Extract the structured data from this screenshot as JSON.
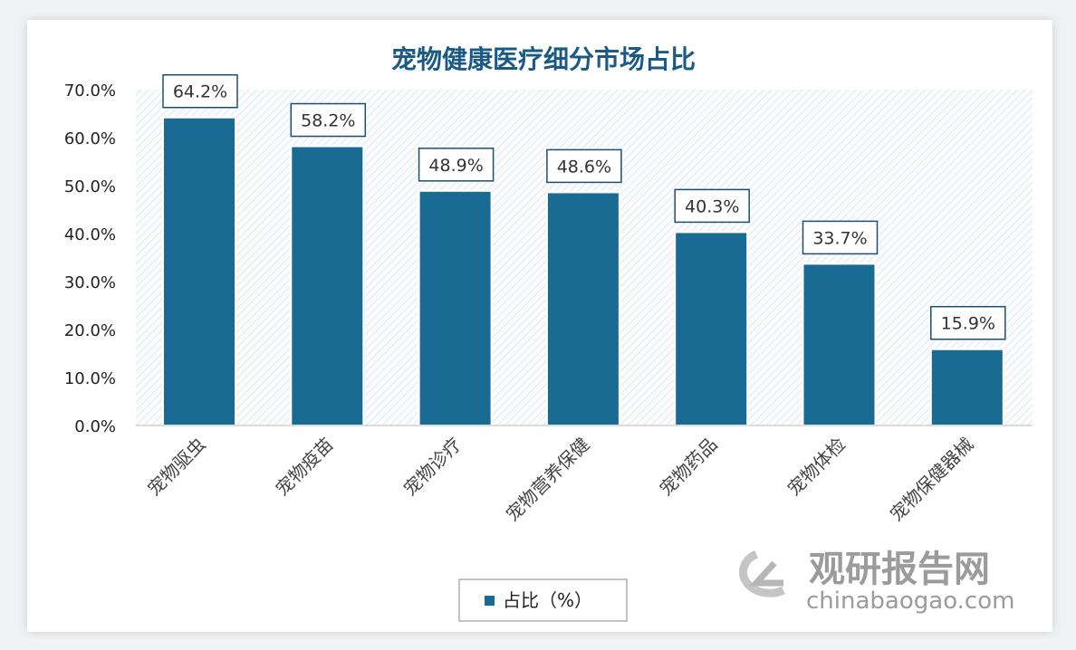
{
  "chart_data": {
    "type": "bar",
    "title": "宠物健康医疗细分市场占比",
    "categories": [
      "宠物驱虫",
      "宠物疫苗",
      "宠物诊疗",
      "宠物营养保健",
      "宠物药品",
      "宠物体检",
      "宠物保健器械"
    ],
    "series": [
      {
        "name": "占比（%）",
        "values": [
          64.2,
          58.2,
          48.9,
          48.6,
          40.3,
          33.7,
          15.9
        ],
        "color": "#196b93"
      }
    ],
    "data_labels": [
      "64.2%",
      "58.2%",
      "48.9%",
      "48.6%",
      "40.3%",
      "33.7%",
      "15.9%"
    ],
    "yticks": [
      "0.0%",
      "10.0%",
      "20.0%",
      "30.0%",
      "40.0%",
      "50.0%",
      "60.0%",
      "70.0%"
    ],
    "ylim": [
      0,
      70
    ],
    "xlabel": "",
    "ylabel": "",
    "legend": "bottom-center",
    "grid": false
  },
  "watermark": {
    "name": "观研报告网",
    "url": "chinabaogao.com"
  }
}
